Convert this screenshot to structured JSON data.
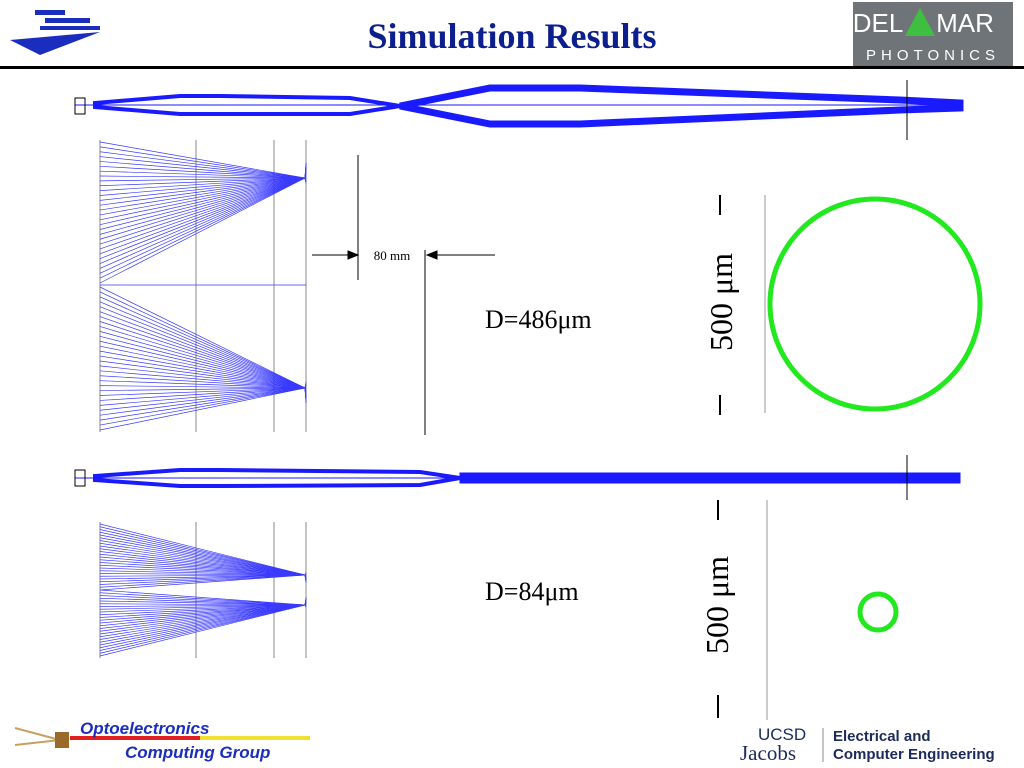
{
  "header": {
    "title": "Simulation Results",
    "logo": {
      "left": "DEL",
      "right": "MAR",
      "bottom": "PHOTONICS"
    }
  },
  "panels": [
    {
      "dimension": "80 mm",
      "diameter": "D=486μm",
      "scale": "500 μm"
    },
    {
      "diameter": "D=84μm",
      "scale": "500 μm"
    }
  ],
  "footer": {
    "group": [
      "Optoelectronics",
      "Computing Group"
    ],
    "university": {
      "name": "UCSD",
      "school": "Jacobs",
      "department": [
        "Electrical and",
        "Computer Engineering"
      ]
    }
  }
}
